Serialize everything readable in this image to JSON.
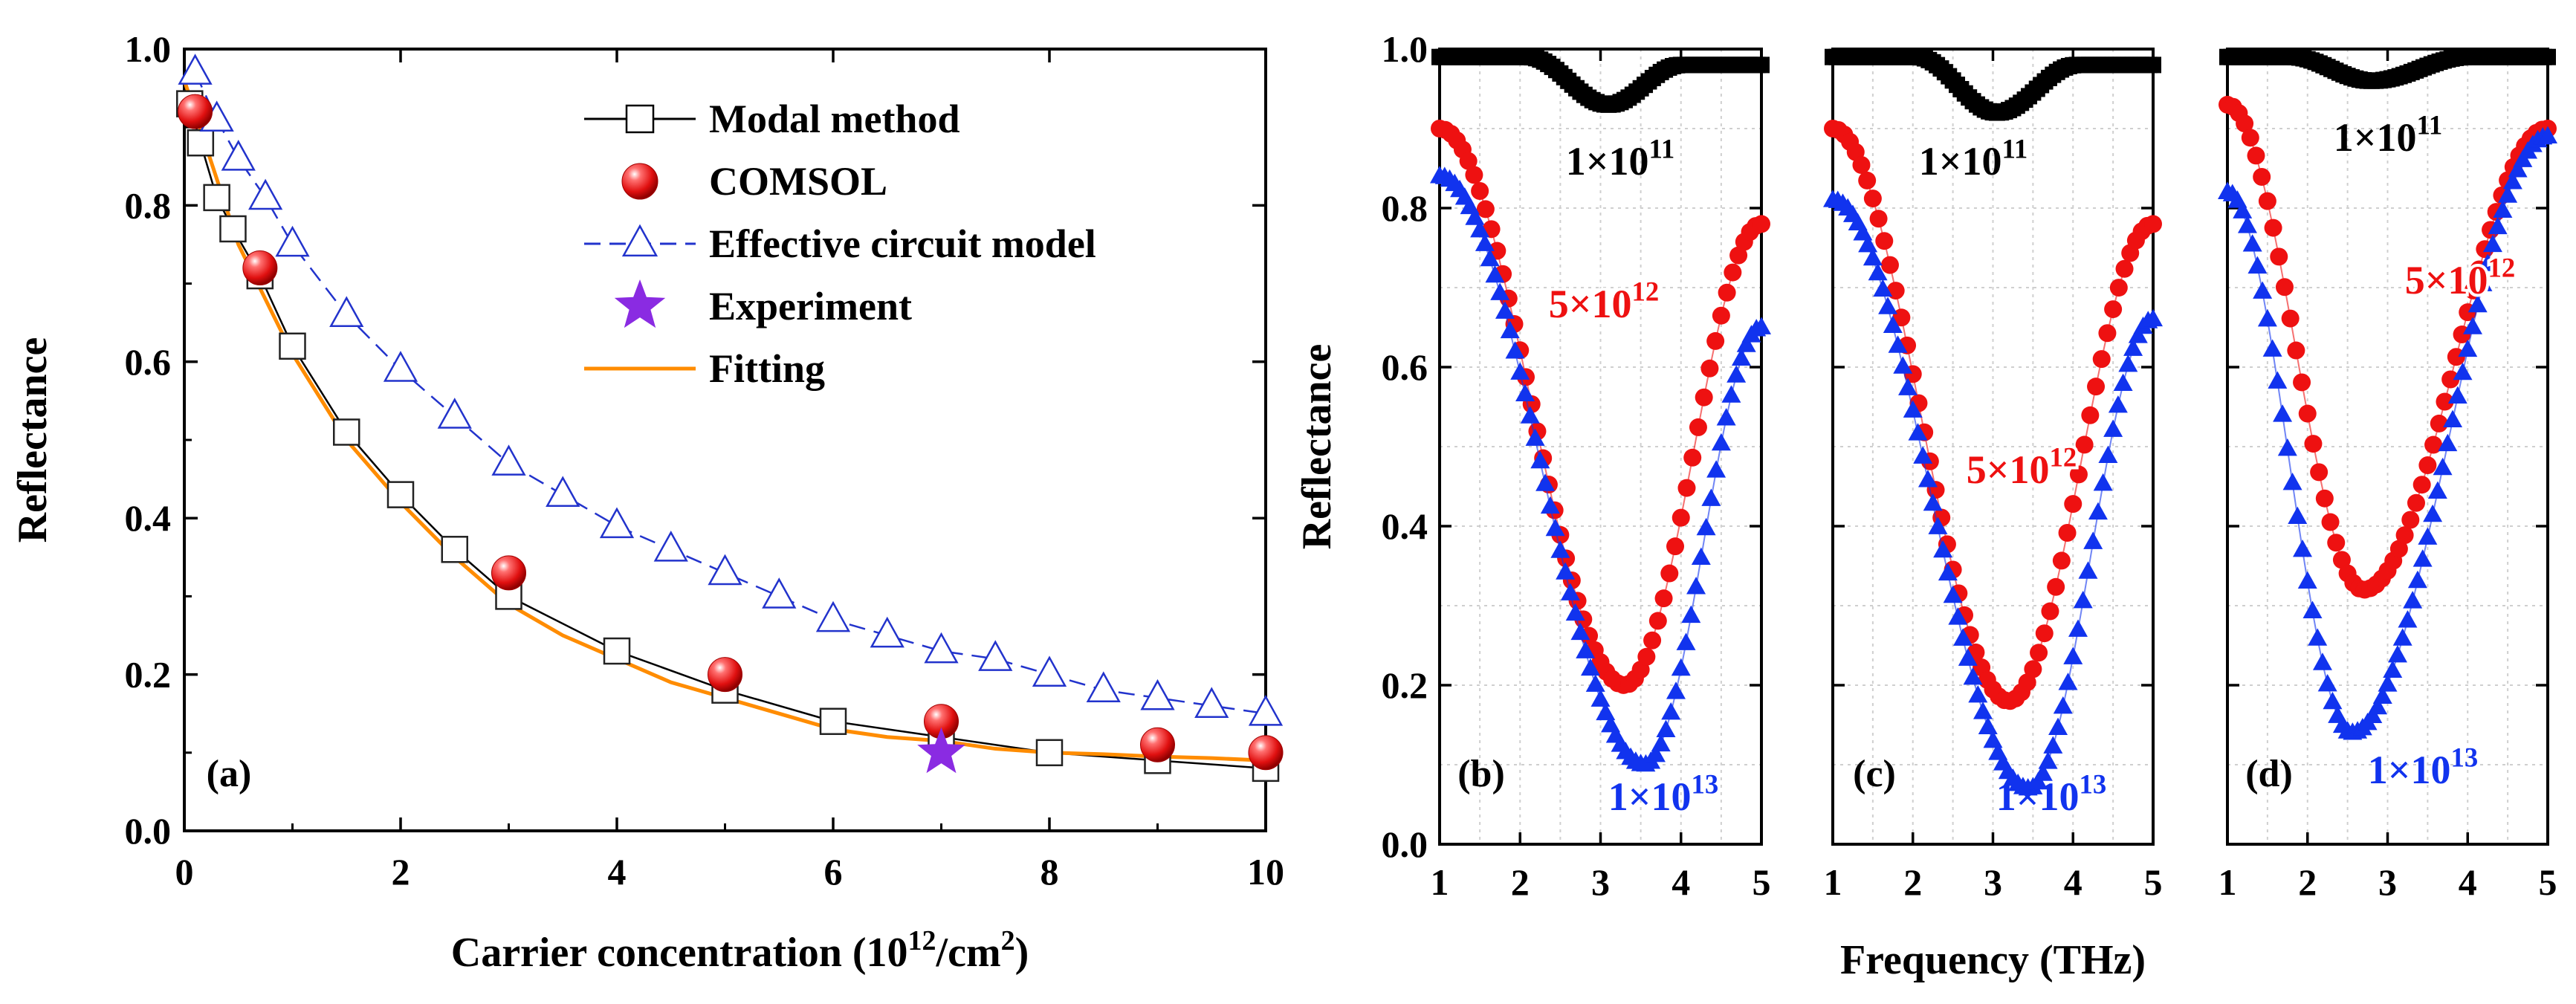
{
  "chart_data": [
    {
      "type": "scatter",
      "id": "a",
      "panel_label": "(a)",
      "xlabel": "Carrier concentration (10",
      "xlabel_sup": "12",
      "xlabel_mid": "/cm",
      "xlabel_sup2": "2",
      "xlabel_end": ")",
      "ylabel": "Reflectance",
      "xlim": [
        0,
        10
      ],
      "ylim": [
        0,
        1.0
      ],
      "xticks": [
        0,
        2,
        4,
        6,
        8,
        10
      ],
      "yticks": [
        0.0,
        0.2,
        0.4,
        0.6,
        0.8,
        1.0
      ],
      "ytick_labels": [
        "0.0",
        "0.2",
        "0.4",
        "0.6",
        "0.8",
        "1.0"
      ],
      "xtick_labels": [
        "0",
        "2",
        "4",
        "6",
        "8",
        "10"
      ],
      "legend": [
        {
          "label": "Modal method",
          "marker": "square",
          "color": "#000000"
        },
        {
          "label": "COMSOL",
          "marker": "sphere",
          "color": "#e01010"
        },
        {
          "label": "Effective circuit model",
          "marker": "triangle",
          "color": "#2233cc"
        },
        {
          "label": "Experiment",
          "marker": "star",
          "color": "#8a2be2"
        },
        {
          "label": "Fitting",
          "marker": "line",
          "color": "#ff8c00"
        }
      ],
      "series": [
        {
          "name": "Modal method",
          "x": [
            0.05,
            0.15,
            0.3,
            0.45,
            0.7,
            1.0,
            1.5,
            2.0,
            2.5,
            3.0,
            4.0,
            5.0,
            6.0,
            7.0,
            8.0,
            9.0,
            10.0
          ],
          "y": [
            0.93,
            0.88,
            0.81,
            0.77,
            0.71,
            0.62,
            0.51,
            0.43,
            0.36,
            0.3,
            0.23,
            0.18,
            0.14,
            0.12,
            0.1,
            0.09,
            0.08
          ]
        },
        {
          "name": "COMSOL",
          "x": [
            0.1,
            0.7,
            3.0,
            5.0,
            7.0,
            9.0,
            10.0
          ],
          "y": [
            0.92,
            0.72,
            0.33,
            0.2,
            0.14,
            0.11,
            0.1
          ]
        },
        {
          "name": "Effective circuit model",
          "x": [
            0.1,
            0.3,
            0.5,
            0.75,
            1.0,
            1.5,
            2.0,
            2.5,
            3.0,
            3.5,
            4.0,
            4.5,
            5.0,
            5.5,
            6.0,
            6.5,
            7.0,
            7.5,
            8.0,
            8.5,
            9.0,
            9.5,
            10.0
          ],
          "y": [
            0.97,
            0.91,
            0.86,
            0.81,
            0.75,
            0.66,
            0.59,
            0.53,
            0.47,
            0.43,
            0.39,
            0.36,
            0.33,
            0.3,
            0.27,
            0.25,
            0.23,
            0.22,
            0.2,
            0.18,
            0.17,
            0.16,
            0.15
          ]
        },
        {
          "name": "Experiment",
          "x": [
            7.0
          ],
          "y": [
            0.1
          ]
        },
        {
          "name": "Fitting",
          "x": [
            0.0,
            0.5,
            1.0,
            1.5,
            2.0,
            2.5,
            3.0,
            3.5,
            4.0,
            4.5,
            5.0,
            5.5,
            6.0,
            6.5,
            7.0,
            7.5,
            8.0,
            8.5,
            9.0,
            9.5,
            10.0
          ],
          "y": [
            0.96,
            0.75,
            0.61,
            0.5,
            0.42,
            0.35,
            0.29,
            0.25,
            0.22,
            0.19,
            0.17,
            0.15,
            0.13,
            0.12,
            0.115,
            0.105,
            0.1,
            0.098,
            0.095,
            0.093,
            0.09
          ]
        }
      ]
    },
    {
      "type": "scatter",
      "id": "b",
      "panel_label": "(b)",
      "ylabel": "Reflectance",
      "xlim": [
        1,
        5
      ],
      "ylim": [
        0,
        1.0
      ],
      "xticks": [
        1,
        2,
        3,
        4,
        5
      ],
      "xtick_labels": [
        "1",
        "2",
        "3",
        "4",
        "5"
      ],
      "yticks": [
        0.0,
        0.2,
        0.4,
        0.6,
        0.8,
        1.0
      ],
      "ytick_labels": [
        "0.0",
        "0.2",
        "0.4",
        "0.6",
        "0.8",
        "1.0"
      ],
      "curves": [
        {
          "name": "1×10^11",
          "color": "#000000",
          "marker": "square",
          "f0": 3.1,
          "min": 0.93,
          "left": 0.99,
          "right": 0.98,
          "wl": 1.0,
          "wr": 0.9
        },
        {
          "name": "5×10^12",
          "color": "#ee1111",
          "marker": "circle",
          "f0": 3.3,
          "min": 0.2,
          "left": 0.9,
          "right": 0.78,
          "wl": 2.3,
          "wr": 1.7
        },
        {
          "name": "1×10^13",
          "color": "#1133ee",
          "marker": "triangle",
          "f0": 3.55,
          "min": 0.1,
          "left": 0.84,
          "right": 0.65,
          "wl": 2.55,
          "wr": 1.45
        }
      ],
      "annotations": [
        {
          "base": "1×10",
          "exp": "11",
          "color": "#000000"
        },
        {
          "base": "5×10",
          "exp": "12",
          "color": "#ee1111"
        },
        {
          "base": "1×10",
          "exp": "13",
          "color": "#1133ee"
        }
      ]
    },
    {
      "type": "scatter",
      "id": "c",
      "panel_label": "(c)",
      "xlabel": "Frequency (THz)",
      "xlim": [
        1,
        5
      ],
      "ylim": [
        0,
        1.0
      ],
      "xticks": [
        1,
        2,
        3,
        4,
        5
      ],
      "xtick_labels": [
        "1",
        "2",
        "3",
        "4",
        "5"
      ],
      "curves": [
        {
          "name": "1×10^11",
          "color": "#000000",
          "marker": "square",
          "f0": 3.05,
          "min": 0.92,
          "left": 0.99,
          "right": 0.98,
          "wl": 1.0,
          "wr": 1.0
        },
        {
          "name": "5×10^12",
          "color": "#ee1111",
          "marker": "circle",
          "f0": 3.2,
          "min": 0.18,
          "left": 0.9,
          "right": 0.78,
          "wl": 2.2,
          "wr": 1.8
        },
        {
          "name": "1×10^13",
          "color": "#1133ee",
          "marker": "triangle",
          "f0": 3.45,
          "min": 0.07,
          "left": 0.81,
          "right": 0.66,
          "wl": 2.45,
          "wr": 1.55
        }
      ],
      "annotations": [
        {
          "base": "1×10",
          "exp": "11",
          "color": "#000000"
        },
        {
          "base": "5×10",
          "exp": "12",
          "color": "#ee1111"
        },
        {
          "base": "1×10",
          "exp": "13",
          "color": "#1133ee"
        }
      ]
    },
    {
      "type": "scatter",
      "id": "d",
      "panel_label": "(d)",
      "xlim": [
        1,
        5
      ],
      "ylim": [
        0,
        1.0
      ],
      "xticks": [
        1,
        2,
        3,
        4,
        5
      ],
      "xtick_labels": [
        "1",
        "2",
        "3",
        "4",
        "5"
      ],
      "curves": [
        {
          "name": "1×10^11",
          "color": "#000000",
          "marker": "square",
          "f0": 2.8,
          "min": 0.96,
          "left": 0.99,
          "right": 0.99,
          "wl": 1.0,
          "wr": 1.2
        },
        {
          "name": "5×10^12",
          "color": "#ee1111",
          "marker": "circle",
          "f0": 2.7,
          "min": 0.32,
          "left": 0.93,
          "right": 0.9,
          "wl": 1.7,
          "wr": 2.3
        },
        {
          "name": "1×10^13",
          "color": "#1133ee",
          "marker": "triangle",
          "f0": 2.55,
          "min": 0.14,
          "left": 0.82,
          "right": 0.89,
          "wl": 1.55,
          "wr": 2.45
        }
      ],
      "annotations": [
        {
          "base": "1×10",
          "exp": "11",
          "color": "#000000"
        },
        {
          "base": "5×10",
          "exp": "12",
          "color": "#ee1111"
        },
        {
          "base": "1×10",
          "exp": "13",
          "color": "#1133ee"
        }
      ]
    }
  ]
}
